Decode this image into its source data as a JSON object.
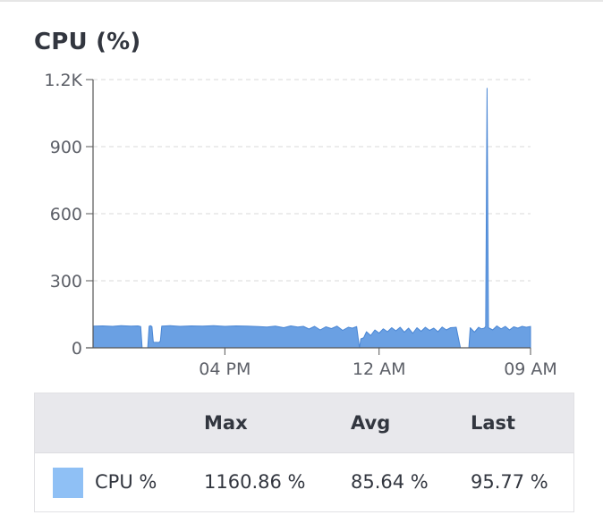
{
  "panel": {
    "title": "CPU (%)"
  },
  "colors": {
    "series_fill": "#6aa0e3",
    "series_stroke": "#4a86d4",
    "legend_swatch": "#8fc0f5",
    "grid": "#d9d9d9",
    "axis": "#555555"
  },
  "chart_data": {
    "type": "area",
    "title": "CPU (%)",
    "xlabel": "",
    "ylabel": "",
    "ylim": [
      0,
      1200
    ],
    "y_ticks": [
      0,
      300,
      600,
      900,
      1200
    ],
    "y_tick_labels": [
      "0",
      "300",
      "600",
      "900",
      "1.2K"
    ],
    "x_tick_labels": [
      "04 PM",
      "12 AM",
      "09 AM"
    ],
    "grid": true,
    "legend_position": "bottom-table",
    "series": [
      {
        "name": "CPU %",
        "points": [
          [
            0,
            97
          ],
          [
            7,
            98
          ],
          [
            14,
            96
          ],
          [
            20,
            99
          ],
          [
            27,
            97
          ],
          [
            32,
            98
          ],
          [
            34,
            95
          ],
          [
            35,
            0
          ],
          [
            39,
            0
          ],
          [
            40,
            96
          ],
          [
            41,
            99
          ],
          [
            42,
            95
          ],
          [
            43,
            25
          ],
          [
            47,
            24
          ],
          [
            48,
            30
          ],
          [
            49,
            97
          ],
          [
            55,
            99
          ],
          [
            62,
            96
          ],
          [
            70,
            98
          ],
          [
            78,
            97
          ],
          [
            86,
            99
          ],
          [
            94,
            96
          ],
          [
            102,
            98
          ],
          [
            110,
            97
          ],
          [
            118,
            95
          ],
          [
            124,
            93
          ],
          [
            130,
            97
          ],
          [
            136,
            90
          ],
          [
            141,
            98
          ],
          [
            146,
            93
          ],
          [
            150,
            96
          ],
          [
            154,
            84
          ],
          [
            158,
            96
          ],
          [
            162,
            80
          ],
          [
            166,
            94
          ],
          [
            170,
            86
          ],
          [
            174,
            97
          ],
          [
            178,
            78
          ],
          [
            182,
            92
          ],
          [
            185,
            88
          ],
          [
            188,
            95
          ],
          [
            190,
            0
          ],
          [
            191,
            40
          ],
          [
            193,
            45
          ],
          [
            195,
            72
          ],
          [
            198,
            55
          ],
          [
            201,
            80
          ],
          [
            204,
            66
          ],
          [
            207,
            85
          ],
          [
            210,
            72
          ],
          [
            213,
            90
          ],
          [
            216,
            76
          ],
          [
            219,
            92
          ],
          [
            222,
            70
          ],
          [
            225,
            88
          ],
          [
            228,
            65
          ],
          [
            231,
            90
          ],
          [
            234,
            74
          ],
          [
            237,
            92
          ],
          [
            240,
            78
          ],
          [
            243,
            88
          ],
          [
            246,
            72
          ],
          [
            249,
            93
          ],
          [
            252,
            80
          ],
          [
            255,
            90
          ],
          [
            259,
            92
          ],
          [
            262,
            0
          ],
          [
            268,
            0
          ],
          [
            269,
            90
          ],
          [
            272,
            70
          ],
          [
            275,
            92
          ],
          [
            277,
            85
          ],
          [
            279,
            88
          ],
          [
            280,
            96
          ],
          [
            281,
            1160.86
          ],
          [
            282,
            90
          ],
          [
            285,
            80
          ],
          [
            288,
            98
          ],
          [
            291,
            85
          ],
          [
            294,
            96
          ],
          [
            297,
            80
          ],
          [
            300,
            94
          ],
          [
            303,
            88
          ],
          [
            306,
            96
          ],
          [
            309,
            92
          ],
          [
            312,
            95.77
          ]
        ]
      }
    ],
    "x_domain": [
      0,
      312
    ],
    "x_tick_positions": [
      94,
      204,
      312
    ]
  },
  "summary": {
    "headers": {
      "max": "Max",
      "avg": "Avg",
      "last": "Last"
    },
    "rows": [
      {
        "name": "CPU %",
        "max": "1160.86 %",
        "avg": "85.64 %",
        "last": "95.77 %"
      }
    ]
  }
}
